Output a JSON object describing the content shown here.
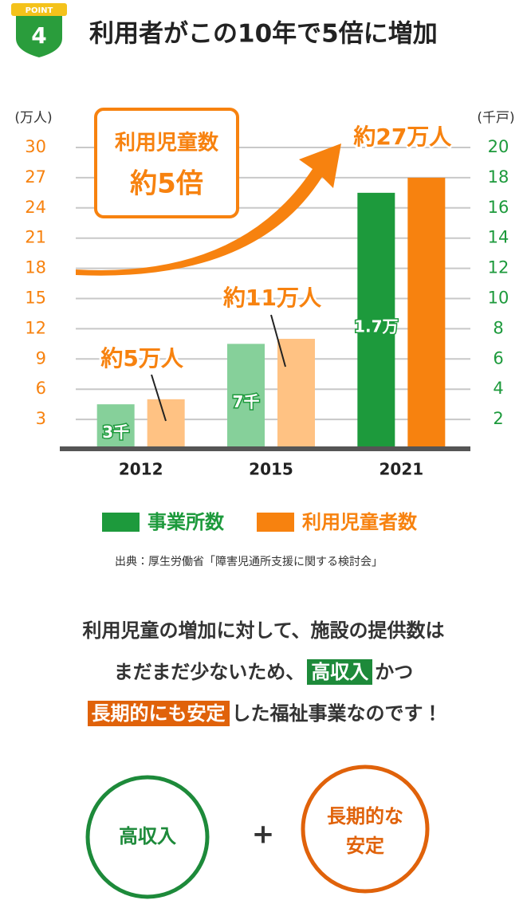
{
  "header": {
    "badge": "POINT",
    "number": "4",
    "title": "利用者がこの10年で5倍に増加"
  },
  "chart_data": {
    "type": "bar",
    "y_label": "(万人)",
    "y2_label": "(千戸)",
    "annotation": [
      "利用児童数",
      "約5倍"
    ],
    "categories": [
      "2012",
      "2015",
      "2021"
    ],
    "series": [
      {
        "name": "事業所数",
        "color": "#1d9a3c",
        "colors": [
          "#86d09a",
          "#86d09a",
          "#1d9a3c"
        ],
        "axis": "y2",
        "values": [
          3,
          7,
          17
        ],
        "value_labels": [
          "3千",
          "7千",
          "1.7万"
        ]
      },
      {
        "name": "利用児童者数",
        "color": "#f7820f",
        "colors": [
          "#ffc283",
          "#ffc283",
          "#f7820f"
        ],
        "values": [
          5,
          11,
          27
        ],
        "value_labels": [
          "約5万人",
          "約11万人",
          "約27万人"
        ]
      }
    ],
    "ylim": [
      0,
      30
    ],
    "yticks": [
      3,
      6,
      9,
      12,
      15,
      18,
      21,
      24,
      27,
      30
    ],
    "y2lim": [
      0,
      20
    ],
    "y2ticks": [
      2,
      4,
      6,
      8,
      10,
      12,
      14,
      16,
      18,
      20
    ],
    "grid": true
  },
  "source": "出典：厚生労働省「障害児通所支援に関する検討会」",
  "message": [
    [
      {
        "text": "利用児童の増加に対して、施設の提供数は"
      }
    ],
    [
      {
        "text": "まだまだ少ないため、"
      },
      {
        "text": "高収入",
        "color": "#1d8a3a"
      },
      {
        "text": "かつ"
      }
    ],
    [
      {
        "text": "長期的にも安定",
        "color": "#e0620a"
      },
      {
        "text": "した福祉事業なのです！"
      }
    ]
  ],
  "circles": {
    "left": "高収入",
    "plus": "+",
    "right": [
      "長期的な",
      "安定"
    ]
  }
}
